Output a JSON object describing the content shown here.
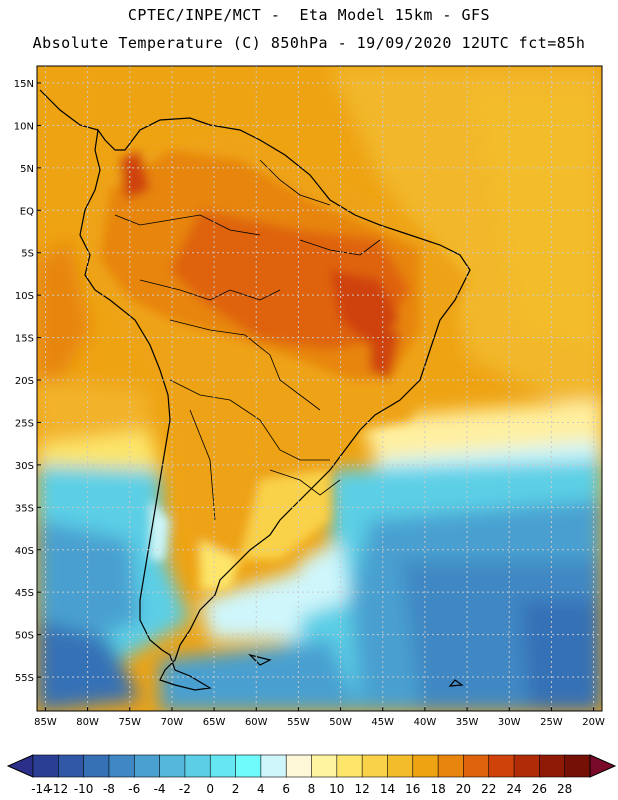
{
  "header": {
    "line1": "CPTEC/INPE/MCT -  Eta Model 15km - GFS",
    "line2": "Absolute Temperature (C) 850hPa - 19/09/2020 12UTC fct=85h"
  },
  "map": {
    "lon_range": [
      -86,
      -19
    ],
    "lat_range": [
      -59,
      17
    ],
    "lon_ticks": [
      "85W",
      "80W",
      "75W",
      "70W",
      "65W",
      "60W",
      "55W",
      "50W",
      "45W",
      "40W",
      "35W",
      "30W",
      "25W",
      "20W"
    ],
    "lat_ticks": [
      "15N",
      "10N",
      "5N",
      "EQ",
      "5S",
      "10S",
      "15S",
      "20S",
      "25S",
      "30S",
      "35S",
      "40S",
      "45S",
      "50S",
      "55S"
    ],
    "grid": true,
    "coastlines": true
  },
  "colorbar": {
    "labels": [
      "-14",
      "-12",
      "-10",
      "-8",
      "-6",
      "-4",
      "-2",
      "0",
      "2",
      "4",
      "6",
      "8",
      "10",
      "12",
      "14",
      "16",
      "18",
      "20",
      "22",
      "24",
      "26",
      "28"
    ],
    "colors": [
      "#2a3f94",
      "#3058a6",
      "#3671b6",
      "#3f88c4",
      "#4aa0d0",
      "#54b8dc",
      "#5ccfe6",
      "#66e6f0",
      "#6ffbfb",
      "#cff6fb",
      "#fff8d8",
      "#fff4a0",
      "#fde66a",
      "#f9d24a",
      "#f3bc2a",
      "#eea313",
      "#e7850f",
      "#df630c",
      "#cf430a",
      "#b02c08",
      "#8f1a06",
      "#741005"
    ],
    "under_color": "#2b2f8a",
    "over_color": "#7a0a2a"
  }
}
